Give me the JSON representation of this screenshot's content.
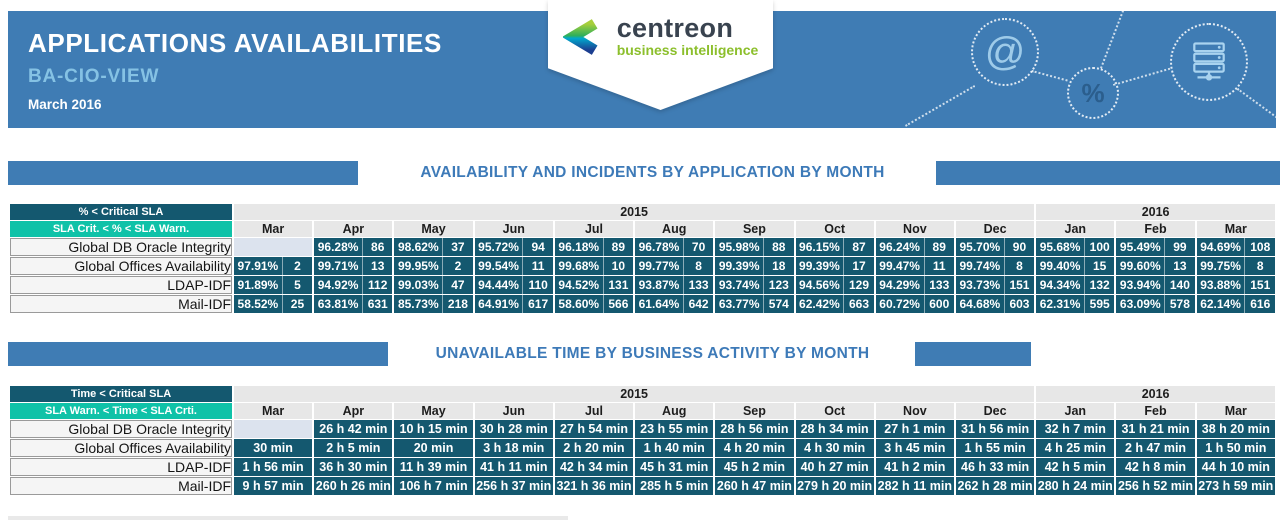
{
  "header": {
    "title": "APPLICATIONS AVAILABILITIES",
    "subtitle": "BA-CIO-VIEW",
    "period": "March 2016",
    "logo": {
      "brand": "centreon",
      "tagline": "business intelligence"
    },
    "decor_icons": [
      "at-icon",
      "percent-icon",
      "server-icon"
    ]
  },
  "colors": {
    "header_blue": "#3F7CB4",
    "subtitle_blue": "#85C2E4",
    "section_title_blue": "#3D7AB8",
    "critical_teal": "#14586F",
    "warning_teal": "#0FC2A8",
    "empty_cell_bg": "#DCE3EE",
    "header_gray": "#E7E7E7",
    "label_bg": "#F5F5F5",
    "logo_green": "#8CBF2C",
    "logo_navy": "#39434F",
    "decor_light_blue": "#9ECBE9",
    "decor_dark_blue": "#2B5E8D"
  },
  "decor": {
    "at_glyph": "@",
    "percent_glyph": "%"
  },
  "sections": [
    {
      "title": "AVAILABILITY AND INCIDENTS BY APPLICATION BY MONTH",
      "legend_critical": "% < Critical SLA",
      "legend_warning": "SLA Crit. < % < SLA Warn.",
      "years": [
        {
          "label": "2015",
          "span": 10
        },
        {
          "label": "2016",
          "span": 3
        }
      ],
      "months": [
        "Mar",
        "Apr",
        "May",
        "Jun",
        "Jul",
        "Aug",
        "Sep",
        "Oct",
        "Nov",
        "Dec",
        "Jan",
        "Feb",
        "Mar"
      ],
      "type": "availability",
      "rows": [
        {
          "label": "Global DB Oracle Integrity",
          "cells": [
            null,
            [
              "96.28%",
              "86"
            ],
            [
              "98.62%",
              "37"
            ],
            [
              "95.72%",
              "94"
            ],
            [
              "96.18%",
              "89"
            ],
            [
              "96.78%",
              "70"
            ],
            [
              "95.98%",
              "88"
            ],
            [
              "96.15%",
              "87"
            ],
            [
              "96.24%",
              "89"
            ],
            [
              "95.70%",
              "90"
            ],
            [
              "95.68%",
              "100"
            ],
            [
              "95.49%",
              "99"
            ],
            [
              "94.69%",
              "108"
            ]
          ]
        },
        {
          "label": "Global Offices Availability",
          "cells": [
            [
              "97.91%",
              "2"
            ],
            [
              "99.71%",
              "13"
            ],
            [
              "99.95%",
              "2"
            ],
            [
              "99.54%",
              "11"
            ],
            [
              "99.68%",
              "10"
            ],
            [
              "99.77%",
              "8"
            ],
            [
              "99.39%",
              "18"
            ],
            [
              "99.39%",
              "17"
            ],
            [
              "99.47%",
              "11"
            ],
            [
              "99.74%",
              "8"
            ],
            [
              "99.40%",
              "15"
            ],
            [
              "99.60%",
              "13"
            ],
            [
              "99.75%",
              "8"
            ]
          ]
        },
        {
          "label": "LDAP-IDF",
          "cells": [
            [
              "91.89%",
              "5"
            ],
            [
              "94.92%",
              "112"
            ],
            [
              "99.03%",
              "47"
            ],
            [
              "94.44%",
              "110"
            ],
            [
              "94.52%",
              "131"
            ],
            [
              "93.87%",
              "133"
            ],
            [
              "93.74%",
              "123"
            ],
            [
              "94.56%",
              "129"
            ],
            [
              "94.29%",
              "133"
            ],
            [
              "93.73%",
              "151"
            ],
            [
              "94.34%",
              "132"
            ],
            [
              "93.94%",
              "140"
            ],
            [
              "93.88%",
              "151"
            ]
          ]
        },
        {
          "label": "Mail-IDF",
          "cells": [
            [
              "58.52%",
              "25"
            ],
            [
              "63.81%",
              "631"
            ],
            [
              "85.73%",
              "218"
            ],
            [
              "64.91%",
              "617"
            ],
            [
              "58.60%",
              "566"
            ],
            [
              "61.64%",
              "642"
            ],
            [
              "63.77%",
              "574"
            ],
            [
              "62.42%",
              "663"
            ],
            [
              "60.72%",
              "600"
            ],
            [
              "64.68%",
              "603"
            ],
            [
              "62.31%",
              "595"
            ],
            [
              "63.09%",
              "578"
            ],
            [
              "62.14%",
              "616"
            ]
          ]
        }
      ]
    },
    {
      "title": "UNAVAILABLE TIME BY BUSINESS ACTIVITY BY MONTH",
      "legend_critical": "Time < Critical SLA",
      "legend_warning": "SLA Warn. < Time < SLA Crti.",
      "years": [
        {
          "label": "2015",
          "span": 10
        },
        {
          "label": "2016",
          "span": 3
        }
      ],
      "months": [
        "Mar",
        "Apr",
        "May",
        "Jun",
        "Jul",
        "Aug",
        "Sep",
        "Oct",
        "Nov",
        "Dec",
        "Jan",
        "Feb",
        "Mar"
      ],
      "type": "time",
      "rows": [
        {
          "label": "Global DB Oracle Integrity",
          "cells": [
            null,
            "26 h 42 min",
            "10 h 15 min",
            "30 h 28 min",
            "27 h 54 min",
            "23 h 55 min",
            "28 h 56 min",
            "28 h 34 min",
            "27 h 1 min",
            "31 h 56 min",
            "32 h 7 min",
            "31 h 21 min",
            "38 h 20 min"
          ]
        },
        {
          "label": "Global Offices Availability",
          "cells": [
            "30 min",
            "2 h 5 min",
            "20 min",
            "3 h 18 min",
            "2 h 20 min",
            "1 h 40 min",
            "4 h 20 min",
            "4 h 30 min",
            "3 h 45 min",
            "1 h 55 min",
            "4 h 25 min",
            "2 h 47 min",
            "1 h 50 min"
          ]
        },
        {
          "label": "LDAP-IDF",
          "cells": [
            "1 h 56 min",
            "36 h 30 min",
            "11 h 39 min",
            "41 h 11 min",
            "42 h 34 min",
            "45 h 31 min",
            "45 h 2 min",
            "40 h 27 min",
            "41 h 2 min",
            "46 h 33 min",
            "42 h 5 min",
            "42 h 8 min",
            "44 h 10 min"
          ]
        },
        {
          "label": "Mail-IDF",
          "cells": [
            "9 h 57 min",
            "260 h 26 min",
            "106 h 7 min",
            "256 h 37 min",
            "321 h 36 min",
            "285 h 5 min",
            "260 h 47 min",
            "279 h 20 min",
            "282 h 11 min",
            "262 h 28 min",
            "280 h 24 min",
            "256 h 52 min",
            "273 h 59 min"
          ]
        }
      ]
    }
  ]
}
